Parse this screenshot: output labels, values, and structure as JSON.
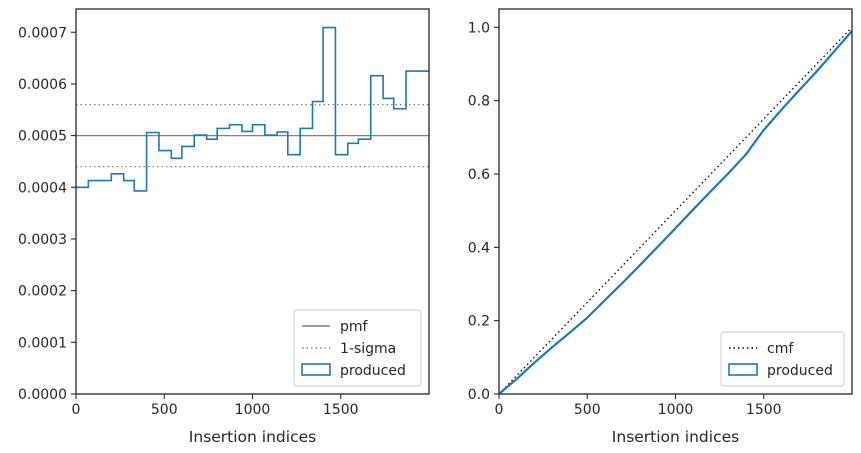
{
  "chart_data": [
    {
      "type": "line",
      "xlabel": "Insertion indices",
      "ylabel": "",
      "xlim": [
        0,
        2000
      ],
      "ylim": [
        0,
        0.000745
      ],
      "xticks": [
        0,
        500,
        1000,
        1500
      ],
      "xtick_labels": [
        "0",
        "500",
        "1000",
        "1500"
      ],
      "yticks": [
        0,
        0.0001,
        0.0002,
        0.0003,
        0.0004,
        0.0005,
        0.0006,
        0.0007
      ],
      "ytick_labels": [
        "0.0000",
        "0.0001",
        "0.0002",
        "0.0003",
        "0.0004",
        "0.0005",
        "0.0006",
        "0.0007"
      ],
      "grid": false,
      "legend_position": "lower-right",
      "hlines": [
        {
          "name": "pmf",
          "y": 0.0005,
          "style": "solid",
          "color": "#808080"
        },
        {
          "name": "1-sigma",
          "y": 0.00056,
          "style": "dotted",
          "color": "#808080"
        },
        {
          "name": "1-sigma",
          "y": 0.00044,
          "style": "dotted",
          "color": "#808080"
        }
      ],
      "series": [
        {
          "name": "produced",
          "kind": "step-histogram",
          "color": "#1f77b4",
          "bin_edges": [
            0,
            70,
            140,
            200,
            270,
            330,
            400,
            470,
            540,
            600,
            670,
            740,
            800,
            870,
            940,
            1000,
            1070,
            1140,
            1200,
            1270,
            1340,
            1400,
            1470,
            1540,
            1600,
            1670,
            1740,
            1800,
            1870,
            1940,
            2000
          ],
          "values": [
            0.0004,
            0.000413,
            0.000413,
            0.000426,
            0.000413,
            0.000393,
            0.000506,
            0.000471,
            0.000456,
            0.000479,
            0.000501,
            0.000493,
            0.000514,
            0.000521,
            0.000508,
            0.000521,
            0.000501,
            0.000507,
            0.000463,
            0.000514,
            0.000566,
            0.000709,
            0.000463,
            0.000485,
            0.000493,
            0.000616,
            0.000572,
            0.000552,
            0.000625,
            0.000625
          ]
        }
      ],
      "legend": [
        {
          "label": "pmf",
          "style": "solid",
          "color": "#808080"
        },
        {
          "label": "1-sigma",
          "style": "dotted",
          "color": "#808080"
        },
        {
          "label": "produced",
          "style": "patch",
          "color": "#1f77b4"
        }
      ]
    },
    {
      "type": "line",
      "xlabel": "Insertion indices",
      "ylabel": "",
      "xlim": [
        0,
        2000
      ],
      "ylim": [
        0,
        1.05
      ],
      "xticks": [
        0,
        500,
        1000,
        1500
      ],
      "xtick_labels": [
        "0",
        "500",
        "1000",
        "1500"
      ],
      "yticks": [
        0,
        0.2,
        0.4,
        0.6,
        0.8,
        1.0
      ],
      "ytick_labels": [
        "0.0",
        "0.2",
        "0.4",
        "0.6",
        "0.8",
        "1.0"
      ],
      "grid": false,
      "legend_position": "lower-right",
      "series": [
        {
          "name": "cmf",
          "style": "dotted",
          "color": "#000000",
          "x": [
            0,
            2000
          ],
          "y": [
            0,
            1.0
          ]
        },
        {
          "name": "produced",
          "style": "solid",
          "color": "#1f77b4",
          "x": [
            0,
            100,
            200,
            300,
            400,
            500,
            600,
            700,
            800,
            900,
            1000,
            1100,
            1200,
            1300,
            1400,
            1500,
            1600,
            1700,
            1800,
            1900,
            2000
          ],
          "y": [
            0,
            0.041,
            0.085,
            0.127,
            0.167,
            0.208,
            0.256,
            0.303,
            0.352,
            0.402,
            0.452,
            0.503,
            0.553,
            0.602,
            0.654,
            0.72,
            0.775,
            0.828,
            0.88,
            0.935,
            0.99
          ]
        }
      ],
      "legend": [
        {
          "label": "cmf",
          "style": "dotted",
          "color": "#000000"
        },
        {
          "label": "produced",
          "style": "patch",
          "color": "#1f77b4"
        }
      ]
    }
  ]
}
